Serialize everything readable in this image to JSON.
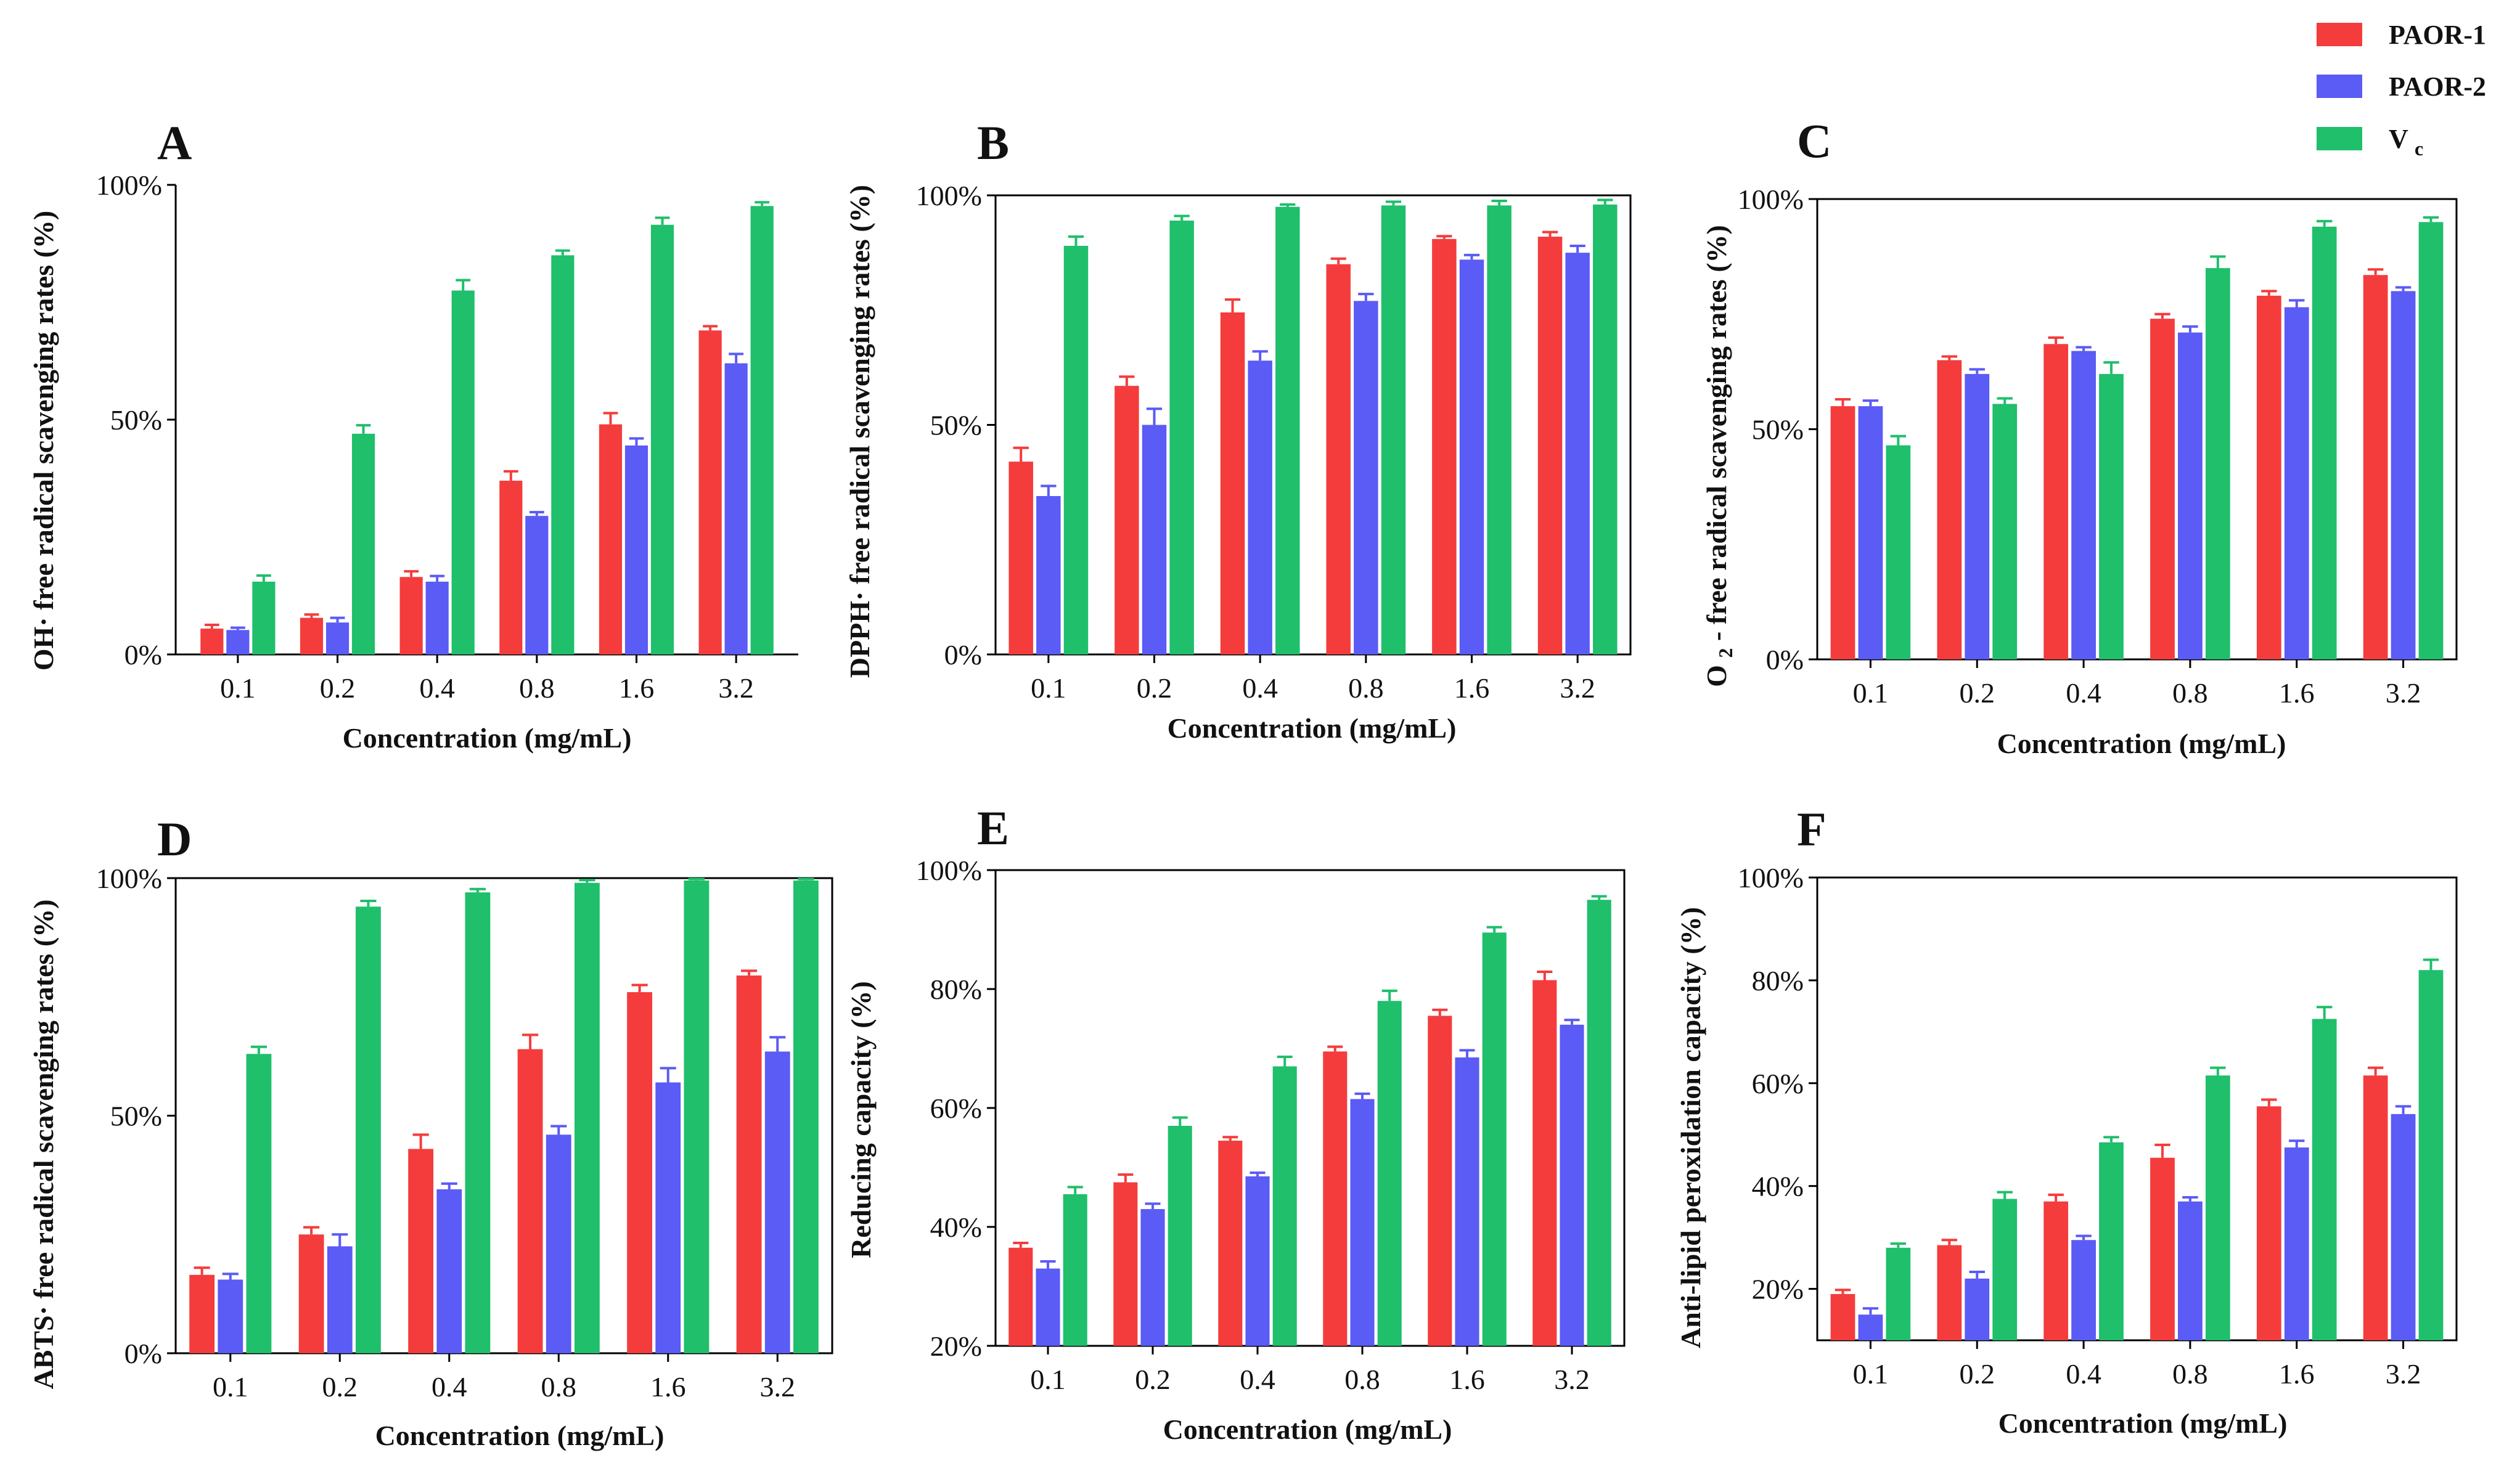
{
  "legend": [
    {
      "label": "PAOR-1",
      "color": "#f43c3c"
    },
    {
      "label": "PAOR-2",
      "color": "#5b5bf5"
    },
    {
      "label": "V",
      "sub": "c",
      "color": "#1fbf6b"
    }
  ],
  "chart_data": [
    {
      "id": "A",
      "type": "bar",
      "letter": "A",
      "xlabel": "Concentration (mg/mL)",
      "ylabel": "OH· free radical scavenging rates (%)",
      "categories": [
        "0.1",
        "0.2",
        "0.4",
        "0.8",
        "1.6",
        "3.2"
      ],
      "ylim": [
        0,
        100
      ],
      "ytick_values": [
        0,
        50,
        100
      ],
      "ytick_labels": [
        "0%",
        "50%",
        "100%"
      ],
      "series": [
        {
          "name": "PAOR-1",
          "values": [
            5.5,
            7.8,
            16.5,
            37,
            49,
            69
          ],
          "errors": [
            0.8,
            0.7,
            1.2,
            2,
            2.4,
            0.9
          ]
        },
        {
          "name": "PAOR-2",
          "values": [
            5.2,
            6.8,
            15.5,
            29.5,
            44.5,
            62
          ],
          "errors": [
            0.5,
            1,
            1.2,
            0.8,
            1.5,
            2
          ]
        },
        {
          "name": "Vc",
          "values": [
            15.5,
            47,
            77.5,
            85,
            91.5,
            95.5
          ],
          "errors": [
            1.3,
            1.8,
            2.2,
            1,
            1.5,
            0.8
          ]
        }
      ]
    },
    {
      "id": "B",
      "type": "bar",
      "letter": "B",
      "xlabel": "Concentration (mg/mL)",
      "ylabel": "DPPH· free radical scavenging rates (%)",
      "categories": [
        "0.1",
        "0.2",
        "0.4",
        "0.8",
        "1.6",
        "3.2"
      ],
      "ylim": [
        0,
        100
      ],
      "ytick_values": [
        0,
        50,
        100
      ],
      "ytick_labels": [
        "0%",
        "50%",
        "100%"
      ],
      "series": [
        {
          "name": "PAOR-1",
          "values": [
            42,
            58.5,
            74.5,
            85,
            90.5,
            91
          ],
          "errors": [
            3,
            2,
            2.8,
            1.2,
            0.6,
            1
          ]
        },
        {
          "name": "PAOR-2",
          "values": [
            34.5,
            50,
            64,
            77,
            86,
            87.5
          ],
          "errors": [
            2.2,
            3.5,
            2,
            1.5,
            1,
            1.5
          ]
        },
        {
          "name": "Vc",
          "values": [
            89,
            94.5,
            97.5,
            97.8,
            97.8,
            98
          ],
          "errors": [
            2,
            1,
            0.5,
            0.8,
            1,
            1
          ]
        }
      ]
    },
    {
      "id": "C",
      "type": "bar",
      "letter": "C",
      "xlabel": "Concentration (mg/mL)",
      "ylabel_parts": [
        "O",
        "2",
        "- free radical scavenging rates (%)"
      ],
      "categories": [
        "0.1",
        "0.2",
        "0.4",
        "0.8",
        "1.6",
        "3.2"
      ],
      "ylim": [
        0,
        100
      ],
      "ytick_values": [
        0,
        50,
        100
      ],
      "ytick_labels": [
        "0%",
        "50%",
        "100%"
      ],
      "series": [
        {
          "name": "PAOR-1",
          "values": [
            55,
            65,
            68.5,
            74,
            79,
            83.5
          ],
          "errors": [
            1.5,
            0.8,
            1.4,
            1,
            1,
            1.2
          ]
        },
        {
          "name": "PAOR-2",
          "values": [
            55,
            62,
            67,
            71,
            76.5,
            80
          ],
          "errors": [
            1.2,
            1,
            0.8,
            1.3,
            1.5,
            0.8
          ]
        },
        {
          "name": "Vc",
          "values": [
            46.5,
            55.5,
            62,
            85,
            94,
            95
          ],
          "errors": [
            2,
            1.2,
            2.5,
            2.5,
            1.2,
            1
          ]
        }
      ]
    },
    {
      "id": "D",
      "type": "bar",
      "letter": "D",
      "xlabel": "Concentration (mg/mL)",
      "ylabel": "ABTS· free radical scavenging rates (%)",
      "categories": [
        "0.1",
        "0.2",
        "0.4",
        "0.8",
        "1.6",
        "3.2"
      ],
      "ylim": [
        0,
        100
      ],
      "ytick_values": [
        0,
        50,
        100
      ],
      "ytick_labels": [
        "0%",
        "50%",
        "100%"
      ],
      "series": [
        {
          "name": "PAOR-1",
          "values": [
            16.5,
            25,
            43,
            64,
            76,
            79.5
          ],
          "errors": [
            1.5,
            1.5,
            3,
            3,
            1.5,
            1
          ]
        },
        {
          "name": "PAOR-2",
          "values": [
            15.5,
            22.5,
            34.5,
            46,
            57,
            63.5
          ],
          "errors": [
            1.2,
            2.5,
            1.2,
            1.8,
            3,
            3
          ]
        },
        {
          "name": "Vc",
          "values": [
            63,
            94,
            97,
            99,
            99.5,
            99.5
          ],
          "errors": [
            1.5,
            1.2,
            0.7,
            0.6,
            0.3,
            0.3
          ]
        }
      ]
    },
    {
      "id": "E",
      "type": "bar",
      "letter": "E",
      "xlabel": "Concentration (mg/mL)",
      "ylabel": "Reducing capacity (%)",
      "categories": [
        "0.1",
        "0.2",
        "0.4",
        "0.8",
        "1.6",
        "3.2"
      ],
      "ylim": [
        20,
        100
      ],
      "ytick_values": [
        20,
        40,
        60,
        80,
        100
      ],
      "ytick_labels": [
        "20%",
        "40%",
        "60%",
        "80%",
        "100%"
      ],
      "series": [
        {
          "name": "PAOR-1",
          "values": [
            36.5,
            47.5,
            54.5,
            69.5,
            75.5,
            81.5
          ],
          "errors": [
            0.8,
            1.3,
            0.6,
            0.8,
            1,
            1.4
          ]
        },
        {
          "name": "PAOR-2",
          "values": [
            33,
            43,
            48.5,
            61.5,
            68.5,
            74
          ],
          "errors": [
            1.2,
            0.9,
            0.6,
            0.9,
            1.2,
            0.8
          ]
        },
        {
          "name": "Vc",
          "values": [
            45.5,
            57,
            67,
            78,
            89.5,
            95
          ],
          "errors": [
            1.2,
            1.4,
            1.6,
            1.7,
            0.9,
            0.6
          ]
        }
      ]
    },
    {
      "id": "F",
      "type": "bar",
      "letter": "F",
      "xlabel": "Concentration (mg/mL)",
      "ylabel": "Anti-lipid peroxidation capacity (%)",
      "categories": [
        "0.1",
        "0.2",
        "0.4",
        "0.8",
        "1.6",
        "3.2"
      ],
      "ylim": [
        10,
        100
      ],
      "ytick_values": [
        20,
        40,
        60,
        80,
        100
      ],
      "ytick_labels": [
        "20%",
        "40%",
        "60%",
        "80%",
        "100%"
      ],
      "series": [
        {
          "name": "PAOR-1",
          "values": [
            19,
            28.5,
            37,
            45.5,
            55.5,
            61.5
          ],
          "errors": [
            0.8,
            1,
            1.3,
            2.5,
            1.3,
            1.5
          ]
        },
        {
          "name": "PAOR-2",
          "values": [
            15,
            22,
            29.5,
            37,
            47.5,
            54
          ],
          "errors": [
            1.2,
            1.3,
            0.8,
            0.8,
            1.3,
            1.5
          ]
        },
        {
          "name": "Vc",
          "values": [
            28,
            37.5,
            48.5,
            61.5,
            72.5,
            82
          ],
          "errors": [
            0.8,
            1.3,
            1,
            1.5,
            2.3,
            2
          ]
        }
      ]
    }
  ]
}
